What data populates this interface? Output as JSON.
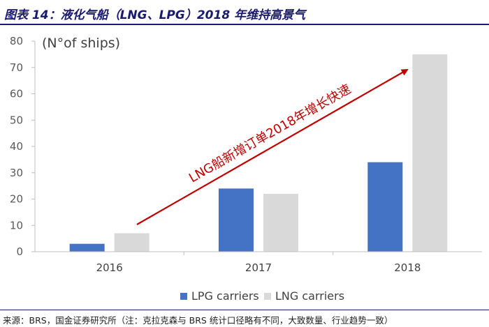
{
  "header": {
    "title": "图表 14：液化气船（LNG、LPG）2018 年维持高景气"
  },
  "footer": {
    "source": "来源：BRS，国金证券研究所（注：克拉克森与 BRS 统计口径略有不同，大致数量、行业趋势一致）"
  },
  "colors": {
    "lpg": "#4472c4",
    "lng": "#d9d9d9",
    "arrow": "#c00000",
    "axis": "#bfbfbf"
  },
  "chart_data": {
    "type": "bar",
    "title": "",
    "ylabel": "(N°of ships)",
    "xlabel": "",
    "categories": [
      "2016",
      "2017",
      "2018"
    ],
    "series": [
      {
        "name": "LPG carriers",
        "values": [
          3,
          24,
          34
        ]
      },
      {
        "name": "LNG carriers",
        "values": [
          7,
          22,
          75
        ]
      }
    ],
    "ylim": [
      0,
      80
    ],
    "yticks": [
      0,
      10,
      20,
      30,
      40,
      50,
      60,
      70,
      80
    ],
    "annotation": "LNG船新增订单2018年增长快速",
    "legend_position": "bottom"
  }
}
